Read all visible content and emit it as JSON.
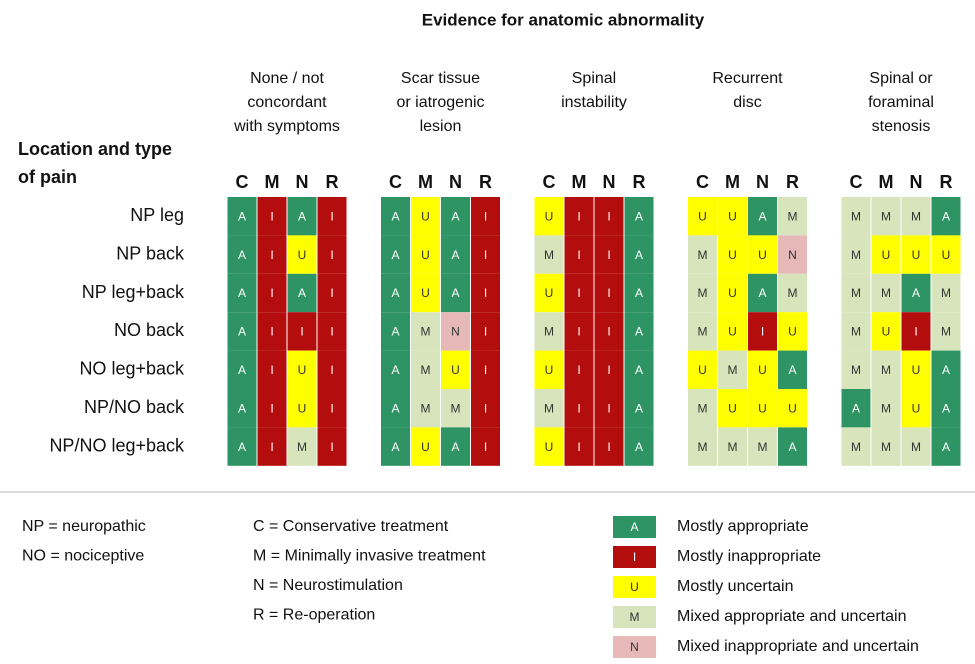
{
  "title": "Evidence for anatomic abnormality",
  "row_header": [
    "Location and type",
    "of pain"
  ],
  "groups": [
    {
      "label": [
        "None / not",
        "concordant",
        "with symptoms"
      ]
    },
    {
      "label": [
        "Scar tissue",
        "or iatrogenic",
        "lesion"
      ]
    },
    {
      "label": [
        "Spinal",
        "instability"
      ]
    },
    {
      "label": [
        "Recurrent",
        "disc"
      ]
    },
    {
      "label": [
        "Spinal or",
        "foraminal",
        "stenosis"
      ]
    }
  ],
  "subcolumns": [
    "C",
    "M",
    "N",
    "R"
  ],
  "rows": [
    {
      "label": "NP leg",
      "cells": [
        [
          "A",
          "I",
          "A",
          "I"
        ],
        [
          "A",
          "U",
          "A",
          "I"
        ],
        [
          "U",
          "I",
          "I",
          "A"
        ],
        [
          "U",
          "U",
          "A",
          "M"
        ],
        [
          "M",
          "M",
          "M",
          "A"
        ]
      ]
    },
    {
      "label": "NP back",
      "cells": [
        [
          "A",
          "I",
          "U",
          "I"
        ],
        [
          "A",
          "U",
          "A",
          "I"
        ],
        [
          "M",
          "I",
          "I",
          "A"
        ],
        [
          "M",
          "U",
          "U",
          "N"
        ],
        [
          "M",
          "U",
          "U",
          "U"
        ]
      ]
    },
    {
      "label": "NP leg+back",
      "cells": [
        [
          "A",
          "I",
          "A",
          "I"
        ],
        [
          "A",
          "U",
          "A",
          "I"
        ],
        [
          "U",
          "I",
          "I",
          "A"
        ],
        [
          "M",
          "U",
          "A",
          "M"
        ],
        [
          "M",
          "M",
          "A",
          "M"
        ]
      ]
    },
    {
      "label": "NO back",
      "cells": [
        [
          "A",
          "I",
          "I",
          "I"
        ],
        [
          "A",
          "M",
          "N",
          "I"
        ],
        [
          "M",
          "I",
          "I",
          "A"
        ],
        [
          "M",
          "U",
          "I",
          "U"
        ],
        [
          "M",
          "U",
          "I",
          "M"
        ]
      ]
    },
    {
      "label": "NO leg+back",
      "cells": [
        [
          "A",
          "I",
          "U",
          "I"
        ],
        [
          "A",
          "M",
          "U",
          "I"
        ],
        [
          "U",
          "I",
          "I",
          "A"
        ],
        [
          "U",
          "M",
          "U",
          "A"
        ],
        [
          "M",
          "M",
          "U",
          "A"
        ]
      ]
    },
    {
      "label": "NP/NO back",
      "cells": [
        [
          "A",
          "I",
          "U",
          "I"
        ],
        [
          "A",
          "M",
          "M",
          "I"
        ],
        [
          "M",
          "I",
          "I",
          "A"
        ],
        [
          "M",
          "U",
          "U",
          "U"
        ],
        [
          "A",
          "M",
          "U",
          "A"
        ]
      ]
    },
    {
      "label": "NP/NO leg+back",
      "cells": [
        [
          "A",
          "I",
          "M",
          "I"
        ],
        [
          "A",
          "U",
          "A",
          "I"
        ],
        [
          "U",
          "I",
          "I",
          "A"
        ],
        [
          "M",
          "M",
          "M",
          "A"
        ],
        [
          "M",
          "M",
          "M",
          "A"
        ]
      ]
    }
  ],
  "abbreviations": [
    "NP = neuropathic",
    "NO = nociceptive"
  ],
  "treatments": [
    "C = Conservative treatment",
    "M = Minimally invasive treatment",
    "N = Neurostimulation",
    "R = Re-operation"
  ],
  "legend": [
    {
      "code": "A",
      "label": "Mostly appropriate",
      "color": "#2e9464",
      "text_color": "#ffffff"
    },
    {
      "code": "I",
      "label": "Mostly inappropriate",
      "color": "#b40d0d",
      "text_color": "#ffffff"
    },
    {
      "code": "U",
      "label": "Mostly uncertain",
      "color": "#ffff00",
      "text_color": "#333333"
    },
    {
      "code": "M",
      "label": "Mixed appropriate and uncertain",
      "color": "#d8e4bc",
      "text_color": "#333333"
    },
    {
      "code": "N",
      "label": "Mixed inappropriate and uncertain",
      "color": "#e6b9b8",
      "text_color": "#333333"
    }
  ]
}
